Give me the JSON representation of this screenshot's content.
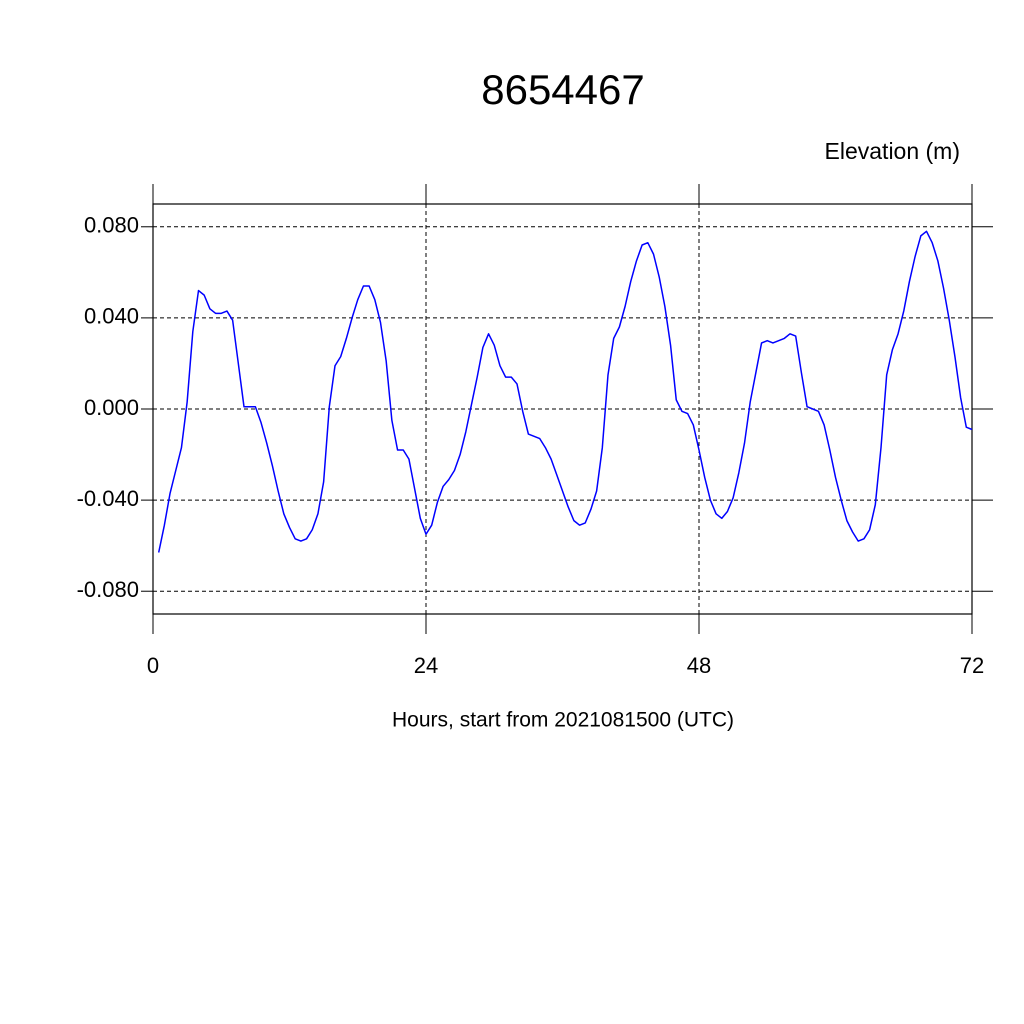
{
  "chart_data": {
    "type": "line",
    "title": "8654467",
    "ylabel": "Elevation (m)",
    "xlabel": "Hours, start from 2021081500 (UTC)",
    "x": [
      0.5,
      1,
      1.5,
      2,
      2.5,
      3,
      3.5,
      4,
      4.5,
      5,
      5.5,
      6,
      6.5,
      7,
      7.5,
      8,
      8.5,
      9,
      9.5,
      10,
      10.5,
      11,
      11.5,
      12,
      12.5,
      13,
      13.5,
      14,
      14.5,
      15,
      15.5,
      16,
      16.5,
      17,
      17.5,
      18,
      18.5,
      19,
      19.5,
      20,
      20.5,
      21,
      21.5,
      22,
      22.5,
      23,
      23.5,
      24,
      24.5,
      25,
      25.5,
      26,
      26.5,
      27,
      27.5,
      28,
      28.5,
      29,
      29.5,
      30,
      30.5,
      31,
      31.5,
      32,
      32.5,
      33,
      33.5,
      34,
      34.5,
      35,
      35.5,
      36,
      36.5,
      37,
      37.5,
      38,
      38.5,
      39,
      39.5,
      40,
      40.5,
      41,
      41.5,
      42,
      42.5,
      43,
      43.5,
      44,
      44.5,
      45,
      45.5,
      46,
      46.5,
      47,
      47.5,
      48,
      48.5,
      49,
      49.5,
      50,
      50.5,
      51,
      51.5,
      52,
      52.5,
      53,
      53.5,
      54,
      54.5,
      55,
      55.5,
      56,
      56.5,
      57,
      57.5,
      58,
      58.5,
      59,
      59.5,
      60,
      60.5,
      61,
      61.5,
      62,
      62.5,
      63,
      63.5,
      64,
      64.5,
      65,
      65.5,
      66,
      66.5,
      67,
      67.5,
      68,
      68.5,
      69,
      69.5,
      70,
      70.5,
      71,
      71.5,
      72
    ],
    "series": [
      {
        "color": "#0000ff",
        "values": [
          -0.063,
          -0.051,
          -0.037,
          -0.027,
          -0.017,
          0.003,
          0.034,
          0.052,
          0.05,
          0.044,
          0.042,
          0.042,
          0.043,
          0.039,
          0.02,
          0.001,
          0.001,
          0.001,
          -0.006,
          -0.015,
          -0.025,
          -0.036,
          -0.046,
          -0.052,
          -0.057,
          -0.058,
          -0.057,
          -0.053,
          -0.046,
          -0.032,
          0.001,
          0.019,
          0.023,
          0.031,
          0.04,
          0.048,
          0.054,
          0.054,
          0.048,
          0.038,
          0.021,
          -0.005,
          -0.018,
          -0.018,
          -0.022,
          -0.035,
          -0.048,
          -0.055,
          -0.051,
          -0.041,
          -0.034,
          -0.031,
          -0.027,
          -0.02,
          -0.01,
          0.002,
          0.014,
          0.027,
          0.033,
          0.028,
          0.019,
          0.014,
          0.014,
          0.011,
          -0.001,
          -0.011,
          -0.012,
          -0.013,
          -0.017,
          -0.022,
          -0.029,
          -0.036,
          -0.043,
          -0.049,
          -0.051,
          -0.05,
          -0.044,
          -0.036,
          -0.017,
          0.015,
          0.031,
          0.036,
          0.045,
          0.056,
          0.065,
          0.072,
          0.073,
          0.068,
          0.058,
          0.045,
          0.028,
          0.004,
          -0.001,
          -0.002,
          -0.007,
          -0.018,
          -0.03,
          -0.04,
          -0.046,
          -0.048,
          -0.045,
          -0.039,
          -0.028,
          -0.015,
          0.003,
          0.016,
          0.029,
          0.03,
          0.029,
          0.03,
          0.031,
          0.033,
          0.032,
          0.016,
          0.001,
          0.0,
          -0.001,
          -0.007,
          -0.018,
          -0.03,
          -0.04,
          -0.049,
          -0.054,
          -0.058,
          -0.057,
          -0.053,
          -0.042,
          -0.017,
          0.015,
          0.026,
          0.033,
          0.043,
          0.056,
          0.067,
          0.076,
          0.078,
          0.073,
          0.065,
          0.053,
          0.039,
          0.023,
          0.005,
          -0.008,
          -0.009
        ]
      }
    ],
    "xlim": [
      0,
      72
    ],
    "xticks": [
      0,
      24,
      48,
      72
    ],
    "ylim": [
      -0.09,
      0.09
    ],
    "yticks": [
      {
        "value": -0.08,
        "label": "-0.080"
      },
      {
        "value": -0.04,
        "label": "-0.040"
      },
      {
        "value": 0,
        "label": "0.000"
      },
      {
        "value": 0.04,
        "label": "0.040"
      },
      {
        "value": 0.08,
        "label": "0.080"
      }
    ],
    "grid": true
  }
}
